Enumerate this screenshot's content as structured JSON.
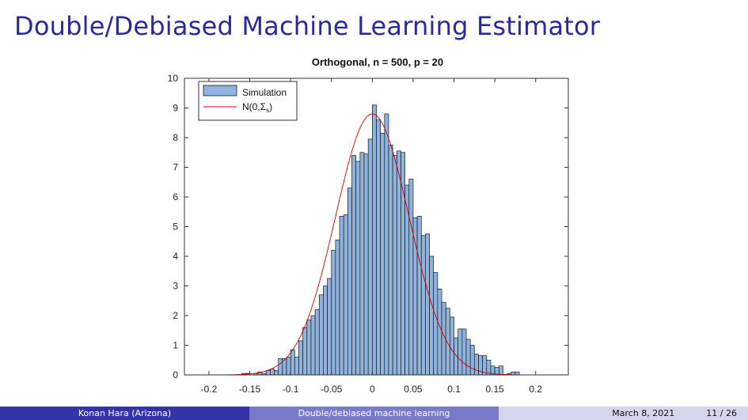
{
  "slide": {
    "title": "Double/Debiased Machine Learning Estimator"
  },
  "footer": {
    "author": "Konan Hara  (Arizona)",
    "talk_title": "Double/debiased machine learning",
    "date": "March 8, 2021",
    "page": "11 / 26"
  },
  "colors": {
    "title": "#2a2a9c",
    "bar_fill": "#8fb3dc",
    "bar_edge": "#1a1a1a",
    "curve": "#d10000",
    "footer_dark": "#3434a8",
    "footer_mid": "#7a7acb",
    "footer_light": "#d5d5ee"
  },
  "chart_data": {
    "type": "bar",
    "title": "Orthogonal, n = 500, p = 20",
    "xlabel": "",
    "ylabel": "",
    "xlim": [
      -0.23,
      0.24
    ],
    "ylim": [
      0,
      10
    ],
    "xticks": [
      -0.2,
      -0.15,
      -0.1,
      -0.05,
      0,
      0.05,
      0.1,
      0.15,
      0.2
    ],
    "xtick_labels": [
      "-0.2",
      "-0.15",
      "-0.1",
      "-0.05",
      "0",
      "0.05",
      "0.1",
      "0.15",
      "0.2"
    ],
    "yticks": [
      0,
      1,
      2,
      3,
      4,
      5,
      6,
      7,
      8,
      9,
      10
    ],
    "ytick_labels": [
      "0",
      "1",
      "2",
      "3",
      "4",
      "5",
      "6",
      "7",
      "8",
      "9",
      "10"
    ],
    "grid": false,
    "legend_position": "top-left",
    "series": [
      {
        "name": "Simulation",
        "kind": "histogram",
        "bin_width": 0.005,
        "bin_left_edges": [
          -0.16,
          -0.155,
          -0.15,
          -0.145,
          -0.14,
          -0.135,
          -0.13,
          -0.125,
          -0.12,
          -0.115,
          -0.11,
          -0.105,
          -0.1,
          -0.095,
          -0.09,
          -0.085,
          -0.08,
          -0.075,
          -0.07,
          -0.065,
          -0.06,
          -0.055,
          -0.05,
          -0.045,
          -0.04,
          -0.035,
          -0.03,
          -0.025,
          -0.02,
          -0.015,
          -0.01,
          -0.005,
          0,
          0.005,
          0.01,
          0.015,
          0.02,
          0.025,
          0.03,
          0.035,
          0.04,
          0.045,
          0.05,
          0.055,
          0.06,
          0.065,
          0.07,
          0.075,
          0.08,
          0.085,
          0.09,
          0.095,
          0.1,
          0.105,
          0.11,
          0.115,
          0.12,
          0.125,
          0.13,
          0.135,
          0.14,
          0.145,
          0.15,
          0.155,
          0.16,
          0.165,
          0.17,
          0.175
        ],
        "values": [
          0.05,
          0.05,
          0.0,
          0.05,
          0.1,
          0.05,
          0.15,
          0.2,
          0.15,
          0.55,
          0.55,
          0.6,
          0.85,
          0.6,
          1.15,
          1.6,
          1.85,
          2.0,
          2.2,
          2.7,
          3.0,
          3.25,
          4.2,
          4.55,
          5.35,
          5.4,
          6.3,
          7.4,
          7.2,
          7.5,
          7.45,
          7.95,
          9.1,
          8.6,
          8.15,
          8.8,
          7.75,
          7.4,
          7.55,
          7.5,
          6.4,
          6.6,
          5.3,
          5.35,
          4.7,
          4.75,
          4.0,
          3.45,
          2.9,
          2.45,
          2.25,
          1.95,
          1.25,
          1.55,
          1.55,
          1.2,
          1.0,
          0.7,
          0.65,
          0.65,
          0.5,
          0.3,
          0.25,
          0.3,
          0.0,
          0.05,
          0.1,
          0.1
        ]
      },
      {
        "name": "N(0,Σ_s)",
        "kind": "normal_curve",
        "mean": 0.0,
        "sd": 0.045,
        "peak": 8.8
      }
    ],
    "legend": {
      "entries": [
        {
          "label": "Simulation"
        },
        {
          "label_main": "N(0,Σ",
          "label_sub": "s",
          "label_close": ")"
        }
      ]
    }
  }
}
